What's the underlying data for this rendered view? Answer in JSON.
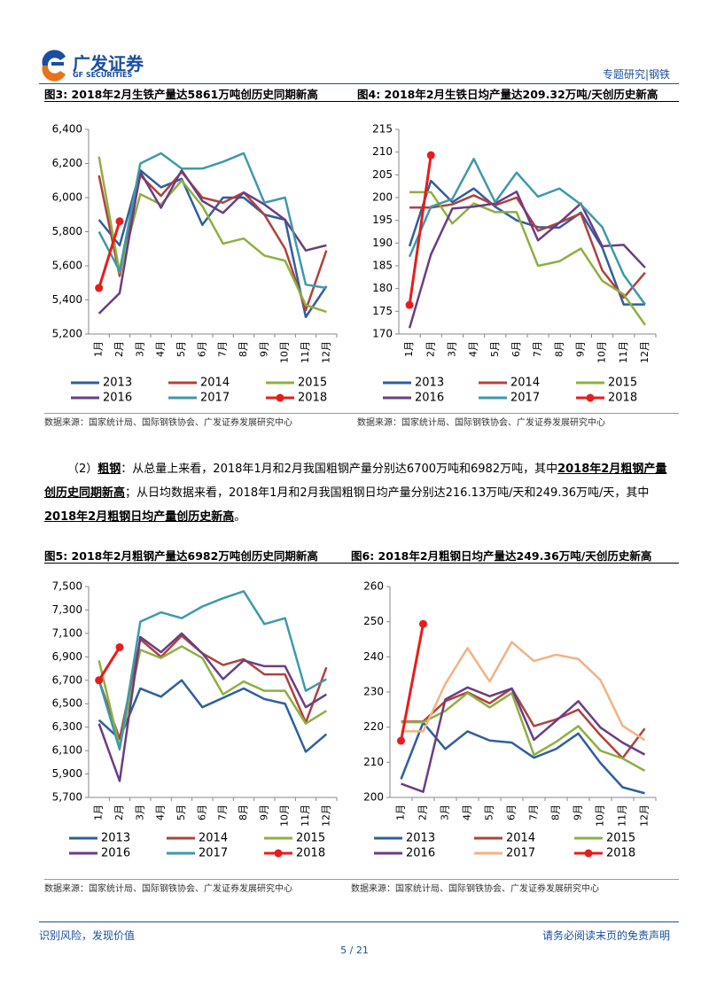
{
  "header": {
    "logo_cn": "广发证券",
    "logo_en": "GF SECURITIES",
    "section": "专题研究|钢铁"
  },
  "chart_data": [
    {
      "type": "line",
      "title": "图3: 2018年2月生铁产量达5861万吨创历史同期新高",
      "categories": [
        "1月",
        "2月",
        "3月",
        "4月",
        "5月",
        "6月",
        "7月",
        "8月",
        "9月",
        "10月",
        "11月",
        "12月"
      ],
      "ylim": [
        5200,
        6400
      ],
      "yticks": [
        {
          "value": 5200,
          "label": "5,200"
        },
        {
          "value": 5400,
          "label": "5,400"
        },
        {
          "value": 5600,
          "label": "5,600"
        },
        {
          "value": 5800,
          "label": "5,800"
        },
        {
          "value": 6000,
          "label": "6,000"
        },
        {
          "value": 6200,
          "label": "6,200"
        },
        {
          "value": 6400,
          "label": "6,400"
        }
      ],
      "legend": "bottom",
      "series": [
        {
          "name": "2013",
          "color": "#2e5f9e",
          "values": [
            5870,
            5720,
            6160,
            6060,
            6110,
            5840,
            6000,
            6000,
            5900,
            5870,
            5300,
            5480
          ]
        },
        {
          "name": "2014",
          "color": "#b0413e",
          "values": [
            6130,
            5540,
            6130,
            6010,
            6150,
            6000,
            5970,
            6030,
            5900,
            5700,
            5340,
            5690
          ]
        },
        {
          "name": "2015",
          "color": "#8db040",
          "values": [
            6240,
            5560,
            6020,
            5960,
            6100,
            5950,
            5730,
            5760,
            5660,
            5630,
            5370,
            5330
          ]
        },
        {
          "name": "2016",
          "color": "#6a3d82",
          "values": [
            5320,
            5440,
            6150,
            5940,
            6160,
            5980,
            5910,
            6030,
            5960,
            5870,
            5690,
            5720
          ]
        },
        {
          "name": "2017",
          "color": "#3d9aa8",
          "values": [
            5800,
            5570,
            6200,
            6260,
            6170,
            6170,
            6210,
            6260,
            5970,
            6000,
            5490,
            5470
          ]
        },
        {
          "name": "2018",
          "color": "#e81c1c",
          "marker": true,
          "values": [
            5470,
            5861,
            null,
            null,
            null,
            null,
            null,
            null,
            null,
            null,
            null,
            null
          ]
        }
      ],
      "source": "数据来源：国家统计局、国际钢铁协会、广发证券发展研究中心"
    },
    {
      "type": "line",
      "title": "图4: 2018年2月生铁日均产量达209.32万吨/天创历史新高",
      "categories": [
        "1月",
        "2月",
        "3月",
        "4月",
        "5月",
        "6月",
        "7月",
        "8月",
        "9月",
        "10月",
        "11月",
        "12月"
      ],
      "ylim": [
        170,
        215
      ],
      "yticks": [
        170,
        175,
        180,
        185,
        190,
        195,
        200,
        205,
        210,
        215
      ],
      "legend": "bottom",
      "series": [
        {
          "name": "2013",
          "color": "#2e5f9e",
          "values": [
            189.3,
            203.7,
            199.0,
            202.0,
            198.0,
            195.0,
            193.5,
            193.4,
            196.7,
            189.0,
            176.5,
            176.5
          ]
        },
        {
          "name": "2014",
          "color": "#b0413e",
          "values": [
            197.8,
            197.8,
            198.5,
            200.5,
            198.3,
            200.0,
            192.7,
            194.5,
            196.5,
            184.0,
            178.0,
            183.5
          ]
        },
        {
          "name": "2015",
          "color": "#8db040",
          "values": [
            201.2,
            201.2,
            194.3,
            198.7,
            196.8,
            196.8,
            185.0,
            186.0,
            188.8,
            181.7,
            178.7,
            172.0
          ]
        },
        {
          "name": "2016",
          "color": "#6a3d82",
          "values": [
            171.3,
            187.5,
            197.6,
            198.0,
            198.7,
            201.3,
            190.6,
            194.5,
            198.7,
            189.3,
            189.6,
            184.6
          ]
        },
        {
          "name": "2017",
          "color": "#3d9aa8",
          "values": [
            187.0,
            198.0,
            199.7,
            208.5,
            199.0,
            205.5,
            200.2,
            202.0,
            198.5,
            193.5,
            183.0,
            176.5
          ]
        },
        {
          "name": "2018",
          "color": "#e81c1c",
          "marker": true,
          "values": [
            176.4,
            209.32,
            null,
            null,
            null,
            null,
            null,
            null,
            null,
            null,
            null,
            null
          ]
        }
      ],
      "source": "数据来源：国家统计局、国际钢铁协会、广发证券发展研究中心"
    },
    {
      "type": "line",
      "title": "图5: 2018年2月粗钢产量达6982万吨创历史同期新高",
      "categories": [
        "1月",
        "2月",
        "3月",
        "4月",
        "5月",
        "6月",
        "7月",
        "8月",
        "9月",
        "10月",
        "11月",
        "12月"
      ],
      "ylim": [
        5700,
        7500
      ],
      "yticks": [
        {
          "value": 5700,
          "label": "5,700"
        },
        {
          "value": 5900,
          "label": "5,900"
        },
        {
          "value": 6100,
          "label": "6,100"
        },
        {
          "value": 6300,
          "label": "6,300"
        },
        {
          "value": 6500,
          "label": "6,500"
        },
        {
          "value": 6700,
          "label": "6,700"
        },
        {
          "value": 6900,
          "label": "6,900"
        },
        {
          "value": 7100,
          "label": "7,100"
        },
        {
          "value": 7300,
          "label": "7,300"
        },
        {
          "value": 7500,
          "label": "7,500"
        }
      ],
      "legend": "bottom",
      "series": [
        {
          "name": "2013",
          "color": "#2e5f9e",
          "values": [
            6360,
            6200,
            6630,
            6560,
            6700,
            6470,
            6550,
            6630,
            6540,
            6500,
            6090,
            6240
          ]
        },
        {
          "name": "2014",
          "color": "#b0413e",
          "values": [
            6700,
            6200,
            7050,
            6900,
            7080,
            6930,
            6830,
            6880,
            6750,
            6750,
            6340,
            6810
          ]
        },
        {
          "name": "2015",
          "color": "#8db040",
          "values": [
            6870,
            6130,
            6960,
            6890,
            6990,
            6890,
            6580,
            6690,
            6610,
            6610,
            6330,
            6440
          ]
        },
        {
          "name": "2016",
          "color": "#6a3d82",
          "values": [
            6330,
            5840,
            7070,
            6940,
            7100,
            6930,
            6710,
            6870,
            6820,
            6820,
            6470,
            6580
          ]
        },
        {
          "name": "2017",
          "color": "#3d9aa8",
          "values": [
            6700,
            6110,
            7200,
            7280,
            7230,
            7330,
            7400,
            7460,
            7180,
            7230,
            6610,
            6710
          ]
        },
        {
          "name": "2018",
          "color": "#e81c1c",
          "marker": true,
          "values": [
            6700,
            6982,
            null,
            null,
            null,
            null,
            null,
            null,
            null,
            null,
            null,
            null
          ]
        }
      ],
      "source": "数据来源：国家统计局、国际钢铁协会、广发证券发展研究中心"
    },
    {
      "type": "line",
      "title": "图6: 2018年2月粗钢日均产量达249.36万吨/天创历史新高",
      "categories": [
        "1月",
        "2月",
        "3月",
        "4月",
        "5月",
        "6月",
        "7月",
        "8月",
        "9月",
        "10月",
        "11月",
        "12月"
      ],
      "ylim": [
        200,
        260
      ],
      "yticks": [
        200,
        210,
        220,
        230,
        240,
        250,
        260
      ],
      "legend": "bottom",
      "series": [
        {
          "name": "2013",
          "color": "#2e5f9e",
          "values": [
            205.2,
            221.3,
            213.8,
            218.8,
            216.2,
            215.6,
            211.3,
            213.8,
            218.2,
            209.8,
            202.9,
            201.2
          ]
        },
        {
          "name": "2014",
          "color": "#b0413e",
          "values": [
            221.6,
            221.6,
            227.4,
            229.9,
            226.8,
            231.0,
            220.3,
            222.2,
            225.0,
            217.7,
            211.2,
            219.6
          ]
        },
        {
          "name": "2015",
          "color": "#8db040",
          "values": [
            221.4,
            221.4,
            224.6,
            229.7,
            225.6,
            229.7,
            212.1,
            215.8,
            220.3,
            213.3,
            211.1,
            207.6
          ]
        },
        {
          "name": "2016",
          "color": "#6a3d82",
          "values": [
            203.9,
            201.6,
            227.9,
            231.3,
            228.8,
            231.0,
            216.4,
            221.8,
            227.4,
            219.9,
            215.6,
            212.2
          ]
        },
        {
          "name": "2017",
          "color": "#f4b183",
          "values": [
            218.8,
            218.8,
            232.3,
            242.5,
            233.0,
            244.2,
            238.8,
            240.6,
            239.4,
            233.4,
            220.4,
            216.3
          ]
        },
        {
          "name": "2018",
          "color": "#e81c1c",
          "marker": true,
          "values": [
            216.13,
            249.36,
            null,
            null,
            null,
            null,
            null,
            null,
            null,
            null,
            null,
            null
          ]
        }
      ],
      "source": "数据来源：国家统计局、国际钢铁协会、广发证券发展研究中心"
    }
  ],
  "paragraph": [
    {
      "text": "（2）"
    },
    {
      "text": "粗钢",
      "emphasis": true
    },
    {
      "text": "：从总量上来看，2018年1月和2月我国粗钢产量分别达6700万吨和6982万吨，其中"
    },
    {
      "text": "2018年2月粗钢产量创历史同期新高",
      "emphasis": true
    },
    {
      "text": "；从日均数据来看，2018年1月和2月我国粗钢日均产量分别达216.13万吨/天和249.36万吨/天，其中"
    },
    {
      "text": "2018年2月粗钢日均产量创历史新高",
      "emphasis": true
    },
    {
      "text": "。"
    }
  ],
  "footer": {
    "left": "识别风险，发现价值",
    "right": "请务必阅读末页的免责声明",
    "page": "5 / 21"
  }
}
